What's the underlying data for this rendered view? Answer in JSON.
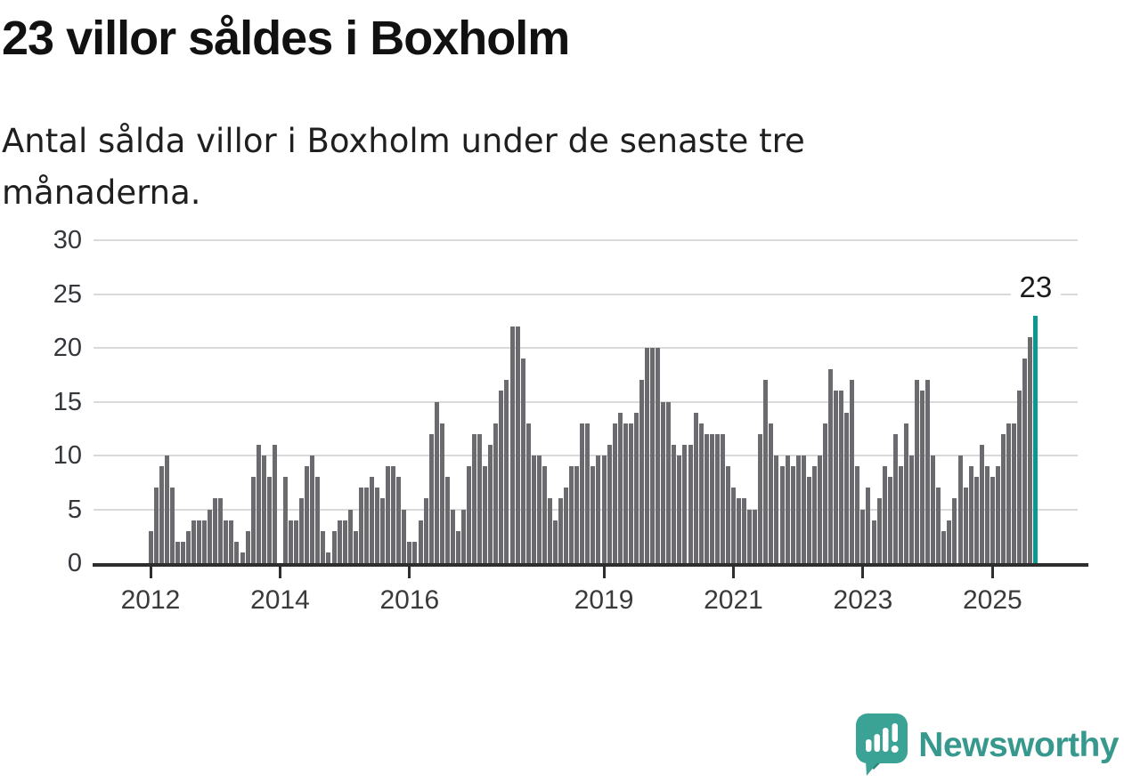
{
  "header": {
    "title": "23 villor såldes i Boxholm",
    "subtitle": "Antal sålda villor i Boxholm under de senaste tre månaderna."
  },
  "chart_data": {
    "type": "bar",
    "title": "23 villor såldes i Boxholm",
    "xlabel": "",
    "ylabel": "",
    "frequency": "monthly",
    "x_start": "2012-01",
    "x_end": "2025-09",
    "values": [
      3,
      7,
      9,
      10,
      7,
      2,
      2,
      3,
      4,
      4,
      4,
      5,
      6,
      6,
      4,
      4,
      2,
      1,
      3,
      8,
      11,
      10,
      8,
      11,
      0,
      8,
      4,
      4,
      6,
      9,
      10,
      8,
      3,
      1,
      3,
      4,
      4,
      5,
      3,
      7,
      7,
      8,
      7,
      6,
      9,
      9,
      8,
      5,
      2,
      2,
      4,
      6,
      12,
      15,
      13,
      8,
      5,
      3,
      5,
      9,
      12,
      12,
      9,
      11,
      13,
      16,
      17,
      22,
      22,
      19,
      13,
      10,
      10,
      9,
      6,
      4,
      6,
      7,
      9,
      9,
      13,
      13,
      9,
      10,
      10,
      11,
      13,
      14,
      13,
      13,
      14,
      17,
      20,
      20,
      20,
      15,
      15,
      11,
      10,
      11,
      11,
      14,
      13,
      12,
      12,
      12,
      12,
      9,
      7,
      6,
      6,
      5,
      5,
      12,
      17,
      13,
      10,
      9,
      10,
      9,
      10,
      10,
      8,
      9,
      10,
      13,
      18,
      16,
      16,
      14,
      17,
      9,
      5,
      7,
      4,
      6,
      9,
      8,
      12,
      9,
      13,
      10,
      17,
      16,
      17,
      10,
      7,
      3,
      4,
      6,
      10,
      7,
      9,
      8,
      11,
      9,
      8,
      9,
      12,
      13,
      13,
      16,
      19,
      21,
      23
    ],
    "ylim": [
      0,
      30
    ],
    "y_ticks": [
      0,
      5,
      10,
      15,
      20,
      25,
      30
    ],
    "x_tick_years": [
      "2012",
      "2014",
      "2016",
      "2019",
      "2021",
      "2023",
      "2025"
    ],
    "x_tick_year_offsets": [
      0,
      2,
      4,
      7,
      9,
      11,
      13
    ],
    "grid": true,
    "legend": "none",
    "bar_color": "#6a6a6f",
    "highlight": {
      "index": 164,
      "label": "23",
      "color": "#0a998f"
    },
    "gridline_color": "#d9d9d9",
    "axis_color": "#2e2e2e"
  },
  "branding": {
    "logo_text": "Newsworthy",
    "logo_color": "#37998d",
    "logo_icon": "newsworthy-speech-bubble-chart-icon"
  }
}
